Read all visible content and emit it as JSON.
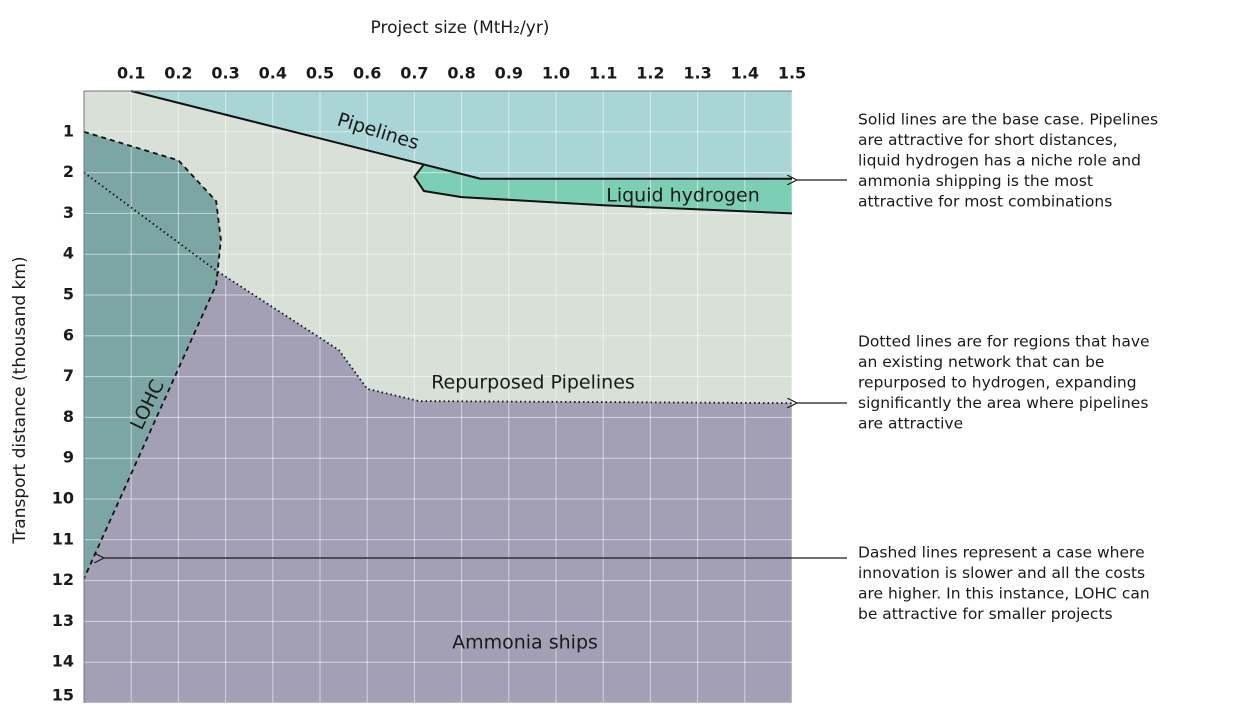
{
  "chart_data": {
    "type": "region",
    "title": "Project size (MtH₂/yr)",
    "y_label": "Transport distance (thousand km)",
    "xlim": [
      0,
      1.5
    ],
    "ylim": [
      0,
      15
    ],
    "xticks": [
      0.1,
      0.2,
      0.3,
      0.4,
      0.5,
      0.6,
      0.7,
      0.8,
      0.9,
      {
        "value": 1,
        "label": "1.0"
      },
      1.1,
      1.2,
      1.3,
      1.4,
      1.5
    ],
    "yticks": [
      1,
      2,
      3,
      4,
      5,
      6,
      7,
      8,
      9,
      10,
      11,
      12,
      13,
      14,
      15
    ],
    "grid": true,
    "background_color": "#d8e0d8",
    "regions": [
      {
        "name": "Pipelines",
        "color": "#a9d5d7",
        "x": [
          0.1,
          0.84,
          1.5,
          1.5
        ],
        "y": [
          0,
          2.15,
          2.15,
          0
        ]
      },
      {
        "name": "Liquid hydrogen",
        "color": "#7ccfb4",
        "x": [
          0.72,
          0.84,
          1.5,
          1.5,
          1.1,
          0.8,
          0.72,
          0.7
        ],
        "y": [
          1.8,
          2.15,
          2.15,
          3.0,
          2.8,
          2.6,
          2.45,
          2.1
        ]
      },
      {
        "name": "Ammonia ships",
        "color": "#a39fb5",
        "x": [
          0.28,
          0.46,
          0.54,
          0.6,
          0.71,
          1.5,
          1.5,
          0,
          0
        ],
        "y": [
          4.4,
          5.75,
          6.35,
          7.3,
          7.6,
          7.65,
          15,
          15,
          11.95
        ]
      },
      {
        "name": "LOHC",
        "color": "#7ba6a4",
        "x": [
          0,
          0.2,
          0.28,
          0.29,
          0.28,
          0
        ],
        "y": [
          1,
          1.7,
          2.7,
          3.65,
          4.75,
          11.95
        ]
      }
    ],
    "boundaries": [
      {
        "style": "solid",
        "x": [
          0.1,
          0.84,
          1.5
        ],
        "y": [
          0,
          2.15,
          2.15
        ]
      },
      {
        "style": "solid",
        "x": [
          0.72,
          0.7,
          0.72,
          0.8,
          1.1,
          1.5
        ],
        "y": [
          1.8,
          2.1,
          2.45,
          2.6,
          2.8,
          3.0
        ]
      },
      {
        "name": "Repurposed Pipelines",
        "style": "dotted",
        "x": [
          0,
          0.28,
          0.46,
          0.54,
          0.6,
          0.71,
          1.5
        ],
        "y": [
          2,
          4.4,
          5.75,
          6.35,
          7.3,
          7.6,
          7.65
        ]
      },
      {
        "style": "dashed",
        "x": [
          0,
          0.2,
          0.28,
          0.29,
          0.28,
          0
        ],
        "y": [
          1,
          1.7,
          2.7,
          3.65,
          4.75,
          11.95
        ]
      }
    ],
    "annotations": [
      {
        "lines": [
          "Solid lines are the base case. Pipelines",
          "are attractive for short distances,",
          "liquid hydrogen has a niche role and",
          "ammonia shipping is the most",
          "attractive for most combinations"
        ]
      },
      {
        "lines": [
          "Dotted lines are for regions that have",
          "an existing network that can be",
          "repurposed to hydrogen, expanding",
          "significantly the area where pipelines",
          "are attractive"
        ]
      },
      {
        "lines": [
          "Dashed lines represent a case where",
          "innovation is slower and all the costs",
          "are higher. In this instance, LOHC can",
          "be attractive for smaller projects"
        ]
      }
    ]
  }
}
